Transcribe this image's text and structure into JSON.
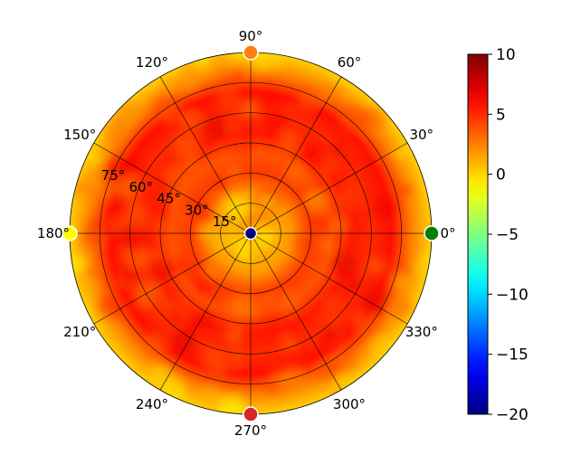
{
  "chart_data": {
    "type": "heatmap",
    "subtype": "polar",
    "theta_tick_labels": [
      "0°",
      "30°",
      "60°",
      "90°",
      "120°",
      "150°",
      "180°",
      "210°",
      "240°",
      "270°",
      "300°",
      "330°"
    ],
    "theta_ticks_deg": [
      0,
      30,
      60,
      90,
      120,
      150,
      180,
      210,
      240,
      270,
      300,
      330
    ],
    "radial_tick_labels": [
      "15°",
      "30°",
      "45°",
      "60°",
      "75°"
    ],
    "radial_ticks_deg": [
      15,
      30,
      45,
      60,
      75
    ],
    "r_range_deg": [
      0,
      90
    ],
    "grid": true,
    "colorbar": {
      "colormap": "jet",
      "vmin": -20,
      "vmax": 10,
      "tick_values": [
        -20,
        -15,
        -10,
        -5,
        0,
        5,
        10
      ],
      "tick_labels": [
        "−20",
        "−15",
        "−10",
        "−5",
        "0",
        "5",
        "10"
      ]
    },
    "rings_value_by_radius": [
      {
        "r": 0,
        "value": 1.5
      },
      {
        "r": 10,
        "value": 1.0
      },
      {
        "r": 20,
        "value": 1.8
      },
      {
        "r": 30,
        "value": 4.5
      },
      {
        "r": 40,
        "value": 3.8
      },
      {
        "r": 50,
        "value": 5.5
      },
      {
        "r": 60,
        "value": 5.0
      },
      {
        "r": 70,
        "value": 5.8
      },
      {
        "r": 80,
        "value": 2.5
      },
      {
        "r": 90,
        "value": 0.2
      }
    ],
    "markers": [
      {
        "name": "zenith",
        "theta_deg": 0,
        "r_deg": 0,
        "color": "#000080"
      },
      {
        "name": "east",
        "theta_deg": 0,
        "r_deg": 90,
        "color": "#008000"
      },
      {
        "name": "north",
        "theta_deg": 90,
        "r_deg": 90,
        "color": "#ff7f0e"
      },
      {
        "name": "west",
        "theta_deg": 180,
        "r_deg": 90,
        "color": "#ffff00"
      },
      {
        "name": "south",
        "theta_deg": 270,
        "r_deg": 90,
        "color": "#d62728"
      }
    ]
  }
}
